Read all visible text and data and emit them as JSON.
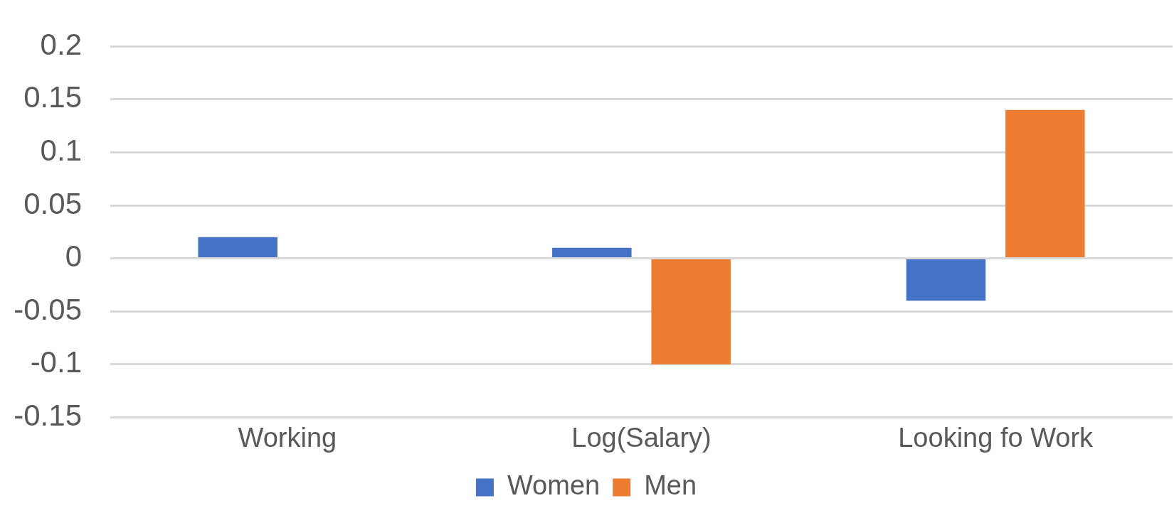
{
  "chart_data": {
    "type": "bar",
    "categories": [
      "Working",
      "Log(Salary)",
      "Looking fo Work"
    ],
    "series": [
      {
        "name": "Women",
        "color": "#4472c4",
        "values": [
          0.02,
          0.01,
          -0.04
        ]
      },
      {
        "name": "Men",
        "color": "#ed7d31",
        "values": [
          null,
          -0.1,
          0.14
        ]
      }
    ],
    "ylim": [
      -0.15,
      0.2
    ],
    "yticks": [
      -0.15,
      -0.1,
      -0.05,
      0,
      0.05,
      0.1,
      0.15,
      0.2
    ],
    "grid": "y",
    "legend": "bottom"
  }
}
